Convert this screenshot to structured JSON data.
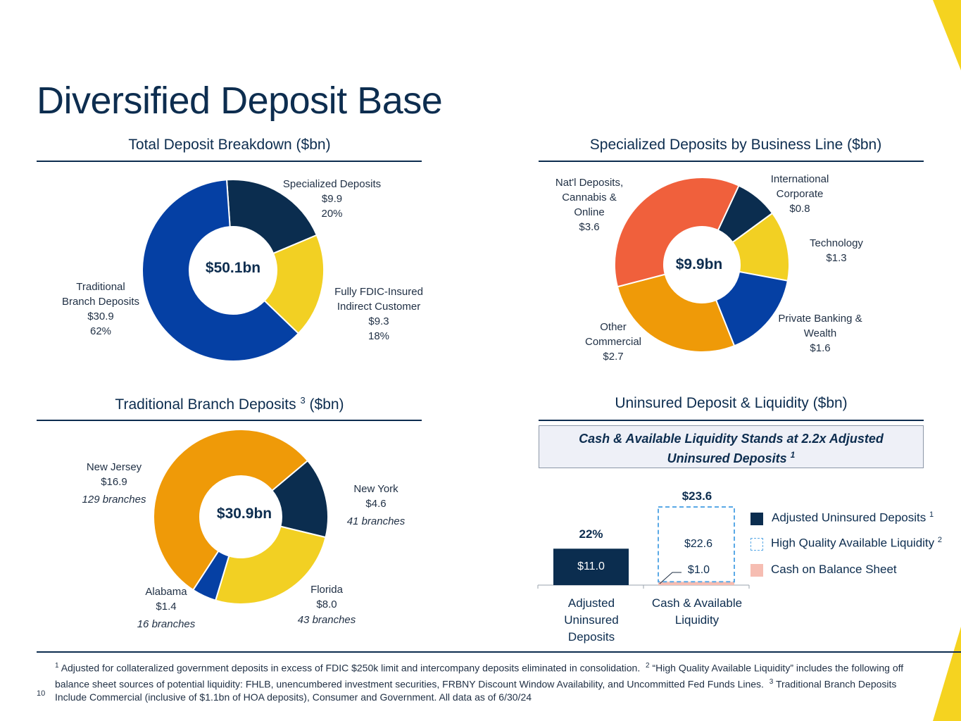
{
  "page": {
    "title": "Diversified Deposit Base",
    "page_number": "10"
  },
  "colors": {
    "navy": "#0b2d4f",
    "yellow": "#f2d023",
    "royal": "#0540a4",
    "orange": "#ef9a08",
    "coral": "#f0603c",
    "pink": "#f6bdb2",
    "dash": "#5aa9e6",
    "accent": "#f5d320"
  },
  "chart_data": [
    {
      "type": "pie",
      "title": "Total Deposit Breakdown ($bn)",
      "center_label": "$50.1bn",
      "slices": [
        {
          "name": "Specialized Deposits",
          "value": 9.9,
          "value_label": "$9.9",
          "pct_label": "20%",
          "color": "#0b2d4f"
        },
        {
          "name": "Fully FDIC-Insured Indirect Customer",
          "value": 9.3,
          "value_label": "$9.3",
          "pct_label": "18%",
          "color": "#f2d023"
        },
        {
          "name": "Traditional Branch Deposits",
          "value": 30.9,
          "value_label": "$30.9",
          "pct_label": "62%",
          "color": "#0540a4"
        }
      ],
      "labels": [
        {
          "lines": [
            "Specialized Deposits",
            "$9.9",
            "20%"
          ]
        },
        {
          "lines": [
            "Fully FDIC-Insured",
            "Indirect Customer",
            "$9.3",
            "18%"
          ]
        },
        {
          "lines": [
            "Traditional",
            "Branch Deposits",
            "$30.9",
            "62%"
          ]
        }
      ]
    },
    {
      "type": "pie",
      "title": "Specialized Deposits by Business Line ($bn)",
      "center_label": "$9.9bn",
      "slices": [
        {
          "name": "International Corporate",
          "value": 0.8,
          "value_label": "$0.8",
          "color": "#0b2d4f"
        },
        {
          "name": "Technology",
          "value": 1.3,
          "value_label": "$1.3",
          "color": "#f2d023"
        },
        {
          "name": "Private Banking & Wealth",
          "value": 1.6,
          "value_label": "$1.6",
          "color": "#0540a4"
        },
        {
          "name": "Other Commercial",
          "value": 2.7,
          "value_label": "$2.7",
          "color": "#ef9a08"
        },
        {
          "name": "Nat'l Deposits, Cannabis & Online",
          "value": 3.6,
          "value_label": "$3.6",
          "color": "#f0603c"
        }
      ],
      "labels": [
        {
          "lines": [
            "International",
            "Corporate",
            "$0.8"
          ]
        },
        {
          "lines": [
            "Technology",
            "$1.3"
          ]
        },
        {
          "lines": [
            "Private Banking &",
            "Wealth",
            "$1.6"
          ]
        },
        {
          "lines": [
            "Other",
            "Commercial",
            "$2.7"
          ]
        },
        {
          "lines": [
            "Nat'l Deposits,",
            "Cannabis &",
            "Online",
            "$3.6"
          ]
        }
      ]
    },
    {
      "type": "pie",
      "title": "Traditional Branch Deposits",
      "title_sup": "3",
      "title_suffix": "($bn)",
      "center_label": "$30.9bn",
      "slices": [
        {
          "name": "New York",
          "value": 4.6,
          "value_label": "$4.6",
          "branches": "41 branches",
          "color": "#0b2d4f"
        },
        {
          "name": "Florida",
          "value": 8.0,
          "value_label": "$8.0",
          "branches": "43 branches",
          "color": "#f2d023"
        },
        {
          "name": "Alabama",
          "value": 1.4,
          "value_label": "$1.4",
          "branches": "16 branches",
          "color": "#0540a4"
        },
        {
          "name": "New Jersey",
          "value": 16.9,
          "value_label": "$16.9",
          "branches": "129 branches",
          "color": "#ef9a08"
        }
      ]
    },
    {
      "type": "bar",
      "title": "Uninsured Deposit & Liquidity ($bn)",
      "callout": {
        "line1": "Cash & Available Liquidity Stands at 2.2x Adjusted",
        "line2": "Uninsured Deposits",
        "sup": "1"
      },
      "categories": [
        [
          "Adjusted",
          "Uninsured",
          "Deposits"
        ],
        [
          "Cash & Available",
          "Liquidity"
        ]
      ],
      "series": [
        {
          "name": "Adjusted Uninsured Deposits",
          "sup": "1",
          "values": [
            11.0,
            0
          ],
          "labels": [
            "$11.0",
            ""
          ],
          "color": "#0b2d4f"
        },
        {
          "name": "High Quality Available Liquidity",
          "sup": "2",
          "values": [
            0,
            22.6
          ],
          "labels": [
            "",
            "$22.6"
          ],
          "color": "#5aa9e6",
          "style": "dashed"
        },
        {
          "name": "Cash on Balance Sheet",
          "values": [
            0,
            1.0
          ],
          "labels": [
            "",
            "$1.0"
          ],
          "color": "#f6bdb2"
        }
      ],
      "totals": [
        "22%",
        "$23.6"
      ],
      "ylim": [
        0,
        30
      ]
    }
  ],
  "footnote": {
    "n1": "1",
    "t1": "Adjusted for collateralized government deposits in excess of FDIC $250k limit and intercompany deposits eliminated in consolidation.",
    "n2": "2",
    "t2": "“High Quality Available Liquidity” includes the following off balance sheet sources of potential liquidity: FHLB, unencumbered investment securities, FRBNY Discount Window Availability, and Uncommitted Fed Funds Lines.",
    "n3": "3",
    "t3": "Traditional Branch Deposits Include Commercial (inclusive of $1.1bn of HOA deposits), Consumer and Government.  All data as of 6/30/24"
  }
}
